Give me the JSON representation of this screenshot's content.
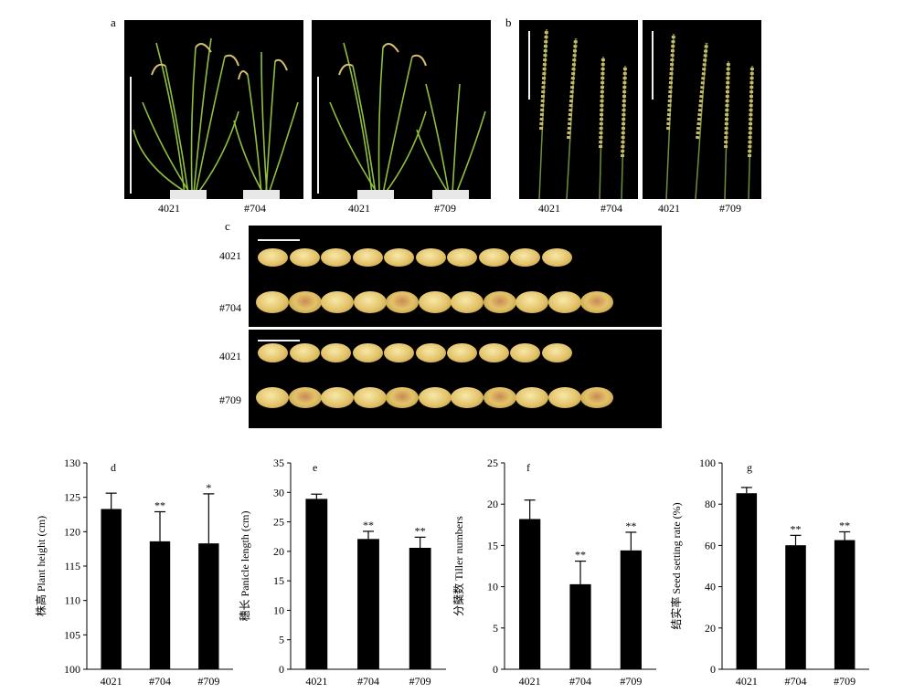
{
  "panels": {
    "a": {
      "letter": "a",
      "left_photo": {
        "labels": [
          "4021",
          "#704"
        ]
      },
      "right_photo": {
        "labels": [
          "4021",
          "#709"
        ]
      }
    },
    "b": {
      "letter": "b",
      "left_photo": {
        "labels": [
          "4021",
          "#704"
        ]
      },
      "right_photo": {
        "labels": [
          "4021",
          "#709"
        ]
      }
    },
    "c": {
      "letter": "c",
      "top_box": {
        "rows": [
          "4021",
          "#704"
        ]
      },
      "bottom_box": {
        "rows": [
          "4021",
          "#709"
        ]
      }
    }
  },
  "colors": {
    "bar": "#000000",
    "photo_bg": "#000000",
    "grain": "#e3c36a",
    "plant": "#7fae3a"
  },
  "chart_data": [
    {
      "type": "bar",
      "panel": "d",
      "ylabel": "株高 Plant height (cm)",
      "categories": [
        "4021",
        "#704",
        "#709"
      ],
      "values": [
        123.3,
        118.6,
        118.3
      ],
      "errors": [
        2.3,
        4.3,
        7.2
      ],
      "significance": [
        "",
        "**",
        "*"
      ],
      "ylim": [
        100,
        130
      ],
      "yticks": [
        100,
        105,
        110,
        115,
        120,
        125,
        130
      ]
    },
    {
      "type": "bar",
      "panel": "e",
      "ylabel": "穗长 Panicle length (cm)",
      "categories": [
        "4021",
        "#704",
        "#709"
      ],
      "values": [
        28.9,
        22.1,
        20.6
      ],
      "errors": [
        0.8,
        1.3,
        1.8
      ],
      "significance": [
        "",
        "**",
        "**"
      ],
      "ylim": [
        0,
        35
      ],
      "yticks": [
        0,
        5,
        10,
        15,
        20,
        25,
        30,
        35
      ]
    },
    {
      "type": "bar",
      "panel": "f",
      "ylabel": "分蘖数 Tiller numbers",
      "categories": [
        "4021",
        "#704",
        "#709"
      ],
      "values": [
        18.2,
        10.3,
        14.4
      ],
      "errors": [
        2.3,
        2.8,
        2.2
      ],
      "significance": [
        "",
        "**",
        "**"
      ],
      "ylim": [
        0,
        25
      ],
      "yticks": [
        0,
        5,
        10,
        15,
        20,
        25
      ]
    },
    {
      "type": "bar",
      "panel": "g",
      "ylabel": "结实率 Seed setting rate (%)",
      "categories": [
        "4021",
        "#704",
        "#709"
      ],
      "values": [
        85.3,
        60.1,
        62.6
      ],
      "errors": [
        2.8,
        4.8,
        4.0
      ],
      "significance": [
        "",
        "**",
        "**"
      ],
      "ylim": [
        0,
        100
      ],
      "yticks": [
        0,
        20,
        40,
        60,
        80,
        100
      ]
    }
  ]
}
